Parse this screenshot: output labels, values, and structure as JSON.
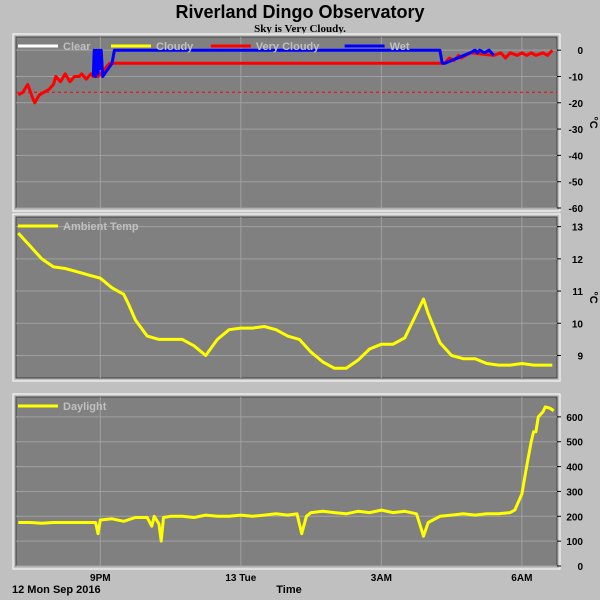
{
  "header": {
    "title": "Riverland Dingo Observatory",
    "subtitle": "Sky is Very Cloudy."
  },
  "footer": {
    "date_label": "12 Mon Sep 2016",
    "xlabel": "Time"
  },
  "colors": {
    "page_background": "#c0c0c0",
    "plot_background": "#808080",
    "grid": "#a0a0a0",
    "clear": "#ffffff",
    "cloudy": "#ffff00",
    "very_cloudy": "#ff0000",
    "wet": "#0000ff",
    "threshold": "#ff0000"
  },
  "chart_data": [
    {
      "type": "line",
      "panel": "sky",
      "xlabel": "",
      "ylabel": "°C",
      "ylim": [
        -60,
        5
      ],
      "yticks": [
        0,
        -10,
        -20,
        -30,
        -40,
        -50,
        -60
      ],
      "xlim": [
        19.2,
        30.75
      ],
      "xticks": [
        {
          "x": 21,
          "label": "9PM"
        },
        {
          "x": 24,
          "label": "13 Tue"
        },
        {
          "x": 27,
          "label": "3AM"
        },
        {
          "x": 30,
          "label": "6AM"
        }
      ],
      "grid": true,
      "legend_position": "top-left",
      "threshold": -16,
      "series": [
        {
          "name": "Clear",
          "color": "#ffffff",
          "points": []
        },
        {
          "name": "Cloudy",
          "color": "#ffff00",
          "points": []
        },
        {
          "name": "Very Cloudy",
          "color": "#ff0000",
          "points": [
            [
              19.25,
              -17
            ],
            [
              19.35,
              -16
            ],
            [
              19.45,
              -13
            ],
            [
              19.55,
              -18
            ],
            [
              19.6,
              -20
            ],
            [
              19.7,
              -17
            ],
            [
              19.8,
              -16
            ],
            [
              19.9,
              -15
            ],
            [
              20.0,
              -13
            ],
            [
              20.05,
              -10
            ],
            [
              20.15,
              -12
            ],
            [
              20.25,
              -9
            ],
            [
              20.35,
              -12
            ],
            [
              20.45,
              -10
            ],
            [
              20.55,
              -10
            ],
            [
              20.6,
              -9
            ],
            [
              20.7,
              -11
            ],
            [
              20.8,
              -9
            ],
            [
              20.85,
              -10
            ],
            [
              20.95,
              -10
            ],
            [
              21.05,
              -8
            ],
            [
              21.15,
              -6
            ],
            [
              21.2,
              -5
            ],
            [
              21.25,
              -5
            ],
            [
              28.35,
              -5
            ],
            [
              28.45,
              -3
            ],
            [
              28.55,
              -4
            ],
            [
              28.65,
              -2
            ],
            [
              28.7,
              -3
            ],
            [
              28.8,
              -2
            ],
            [
              28.9,
              -1
            ],
            [
              29.4,
              -2
            ],
            [
              29.55,
              -1
            ],
            [
              29.65,
              -3
            ],
            [
              29.75,
              -1
            ],
            [
              29.9,
              -2
            ],
            [
              30.0,
              -1
            ],
            [
              30.1,
              -2
            ],
            [
              30.2,
              -1
            ],
            [
              30.3,
              -2
            ],
            [
              30.45,
              -1
            ],
            [
              30.55,
              -2
            ],
            [
              30.65,
              0
            ]
          ]
        },
        {
          "name": "Wet",
          "color": "#0000ff",
          "points": [
            [
              20.85,
              -10
            ],
            [
              20.87,
              0
            ],
            [
              20.9,
              -10
            ],
            [
              20.92,
              0
            ],
            [
              20.95,
              -9
            ],
            [
              20.97,
              0
            ],
            [
              21.0,
              -7
            ],
            [
              21.02,
              0
            ],
            [
              21.05,
              -10
            ],
            [
              21.25,
              -5
            ],
            [
              21.3,
              0
            ],
            [
              21.4,
              0
            ],
            [
              24.0,
              0
            ],
            [
              26.0,
              0
            ],
            [
              27.5,
              0
            ],
            [
              28.25,
              0
            ],
            [
              28.3,
              -5
            ],
            [
              28.35,
              -5
            ],
            [
              28.9,
              -1
            ],
            [
              29.0,
              0
            ],
            [
              29.05,
              -1
            ],
            [
              29.1,
              0
            ],
            [
              29.2,
              -1
            ],
            [
              29.3,
              0
            ],
            [
              29.4,
              -2
            ]
          ]
        }
      ]
    },
    {
      "type": "line",
      "panel": "ambient",
      "xlabel": "",
      "ylabel": "°C",
      "ylim": [
        8.3,
        13.3
      ],
      "yticks": [
        9,
        10,
        11,
        12,
        13
      ],
      "xlim": [
        19.2,
        30.75
      ],
      "xticks": [
        {
          "x": 21,
          "label": "9PM"
        },
        {
          "x": 24,
          "label": "13 Tue"
        },
        {
          "x": 27,
          "label": "3AM"
        },
        {
          "x": 30,
          "label": "6AM"
        }
      ],
      "grid": true,
      "legend_position": "top-left",
      "series": [
        {
          "name": "Ambient Temp",
          "color": "#ffff00",
          "points": [
            [
              19.25,
              12.8
            ],
            [
              19.5,
              12.4
            ],
            [
              19.75,
              12.0
            ],
            [
              20.0,
              11.75
            ],
            [
              20.25,
              11.7
            ],
            [
              20.5,
              11.6
            ],
            [
              20.75,
              11.5
            ],
            [
              21.0,
              11.4
            ],
            [
              21.25,
              11.1
            ],
            [
              21.5,
              10.9
            ],
            [
              21.6,
              10.6
            ],
            [
              21.75,
              10.1
            ],
            [
              22.0,
              9.6
            ],
            [
              22.25,
              9.5
            ],
            [
              22.5,
              9.5
            ],
            [
              22.75,
              9.5
            ],
            [
              23.0,
              9.3
            ],
            [
              23.25,
              9.0
            ],
            [
              23.5,
              9.5
            ],
            [
              23.75,
              9.8
            ],
            [
              24.0,
              9.85
            ],
            [
              24.25,
              9.85
            ],
            [
              24.5,
              9.9
            ],
            [
              24.75,
              9.8
            ],
            [
              25.0,
              9.6
            ],
            [
              25.25,
              9.5
            ],
            [
              25.5,
              9.1
            ],
            [
              25.75,
              8.8
            ],
            [
              26.0,
              8.6
            ],
            [
              26.25,
              8.6
            ],
            [
              26.5,
              8.85
            ],
            [
              26.75,
              9.2
            ],
            [
              27.0,
              9.35
            ],
            [
              27.25,
              9.35
            ],
            [
              27.5,
              9.55
            ],
            [
              27.75,
              10.3
            ],
            [
              27.9,
              10.75
            ],
            [
              28.0,
              10.3
            ],
            [
              28.25,
              9.4
            ],
            [
              28.5,
              9.0
            ],
            [
              28.75,
              8.9
            ],
            [
              29.0,
              8.9
            ],
            [
              29.25,
              8.75
            ],
            [
              29.5,
              8.7
            ],
            [
              29.75,
              8.7
            ],
            [
              30.0,
              8.75
            ],
            [
              30.25,
              8.7
            ],
            [
              30.5,
              8.7
            ],
            [
              30.65,
              8.7
            ]
          ]
        }
      ]
    },
    {
      "type": "line",
      "panel": "daylight",
      "xlabel": "",
      "ylabel": "",
      "ylim": [
        0,
        680
      ],
      "yticks": [
        0,
        100,
        200,
        300,
        400,
        500,
        600
      ],
      "xlim": [
        19.2,
        30.75
      ],
      "xticks": [
        {
          "x": 21,
          "label": "9PM"
        },
        {
          "x": 24,
          "label": "13 Tue"
        },
        {
          "x": 27,
          "label": "3AM"
        },
        {
          "x": 30,
          "label": "6AM"
        }
      ],
      "grid": true,
      "legend_position": "top-left",
      "series": [
        {
          "name": "Daylight",
          "color": "#ffff00",
          "points": [
            [
              19.25,
              175
            ],
            [
              19.5,
              175
            ],
            [
              19.75,
              172
            ],
            [
              20.0,
              175
            ],
            [
              20.5,
              175
            ],
            [
              20.75,
              175
            ],
            [
              20.9,
              175
            ],
            [
              20.95,
              130
            ],
            [
              21.0,
              185
            ],
            [
              21.25,
              190
            ],
            [
              21.5,
              180
            ],
            [
              21.75,
              195
            ],
            [
              22.0,
              195
            ],
            [
              22.1,
              160
            ],
            [
              22.15,
              200
            ],
            [
              22.25,
              170
            ],
            [
              22.3,
              100
            ],
            [
              22.35,
              195
            ],
            [
              22.5,
              200
            ],
            [
              22.75,
              200
            ],
            [
              23.0,
              195
            ],
            [
              23.25,
              205
            ],
            [
              23.5,
              200
            ],
            [
              23.75,
              200
            ],
            [
              24.0,
              205
            ],
            [
              24.25,
              200
            ],
            [
              24.5,
              205
            ],
            [
              24.75,
              210
            ],
            [
              25.0,
              205
            ],
            [
              25.2,
              210
            ],
            [
              25.3,
              130
            ],
            [
              25.4,
              200
            ],
            [
              25.5,
              215
            ],
            [
              25.75,
              220
            ],
            [
              26.0,
              215
            ],
            [
              26.25,
              210
            ],
            [
              26.5,
              220
            ],
            [
              26.75,
              215
            ],
            [
              27.0,
              225
            ],
            [
              27.25,
              215
            ],
            [
              27.5,
              220
            ],
            [
              27.75,
              210
            ],
            [
              27.85,
              150
            ],
            [
              27.9,
              120
            ],
            [
              28.0,
              175
            ],
            [
              28.25,
              200
            ],
            [
              28.5,
              205
            ],
            [
              28.75,
              210
            ],
            [
              29.0,
              205
            ],
            [
              29.25,
              210
            ],
            [
              29.5,
              210
            ],
            [
              29.75,
              215
            ],
            [
              29.85,
              225
            ],
            [
              30.0,
              290
            ],
            [
              30.1,
              400
            ],
            [
              30.2,
              500
            ],
            [
              30.25,
              540
            ],
            [
              30.3,
              540
            ],
            [
              30.35,
              600
            ],
            [
              30.45,
              620
            ],
            [
              30.5,
              640
            ],
            [
              30.6,
              635
            ],
            [
              30.68,
              625
            ]
          ]
        }
      ]
    }
  ]
}
